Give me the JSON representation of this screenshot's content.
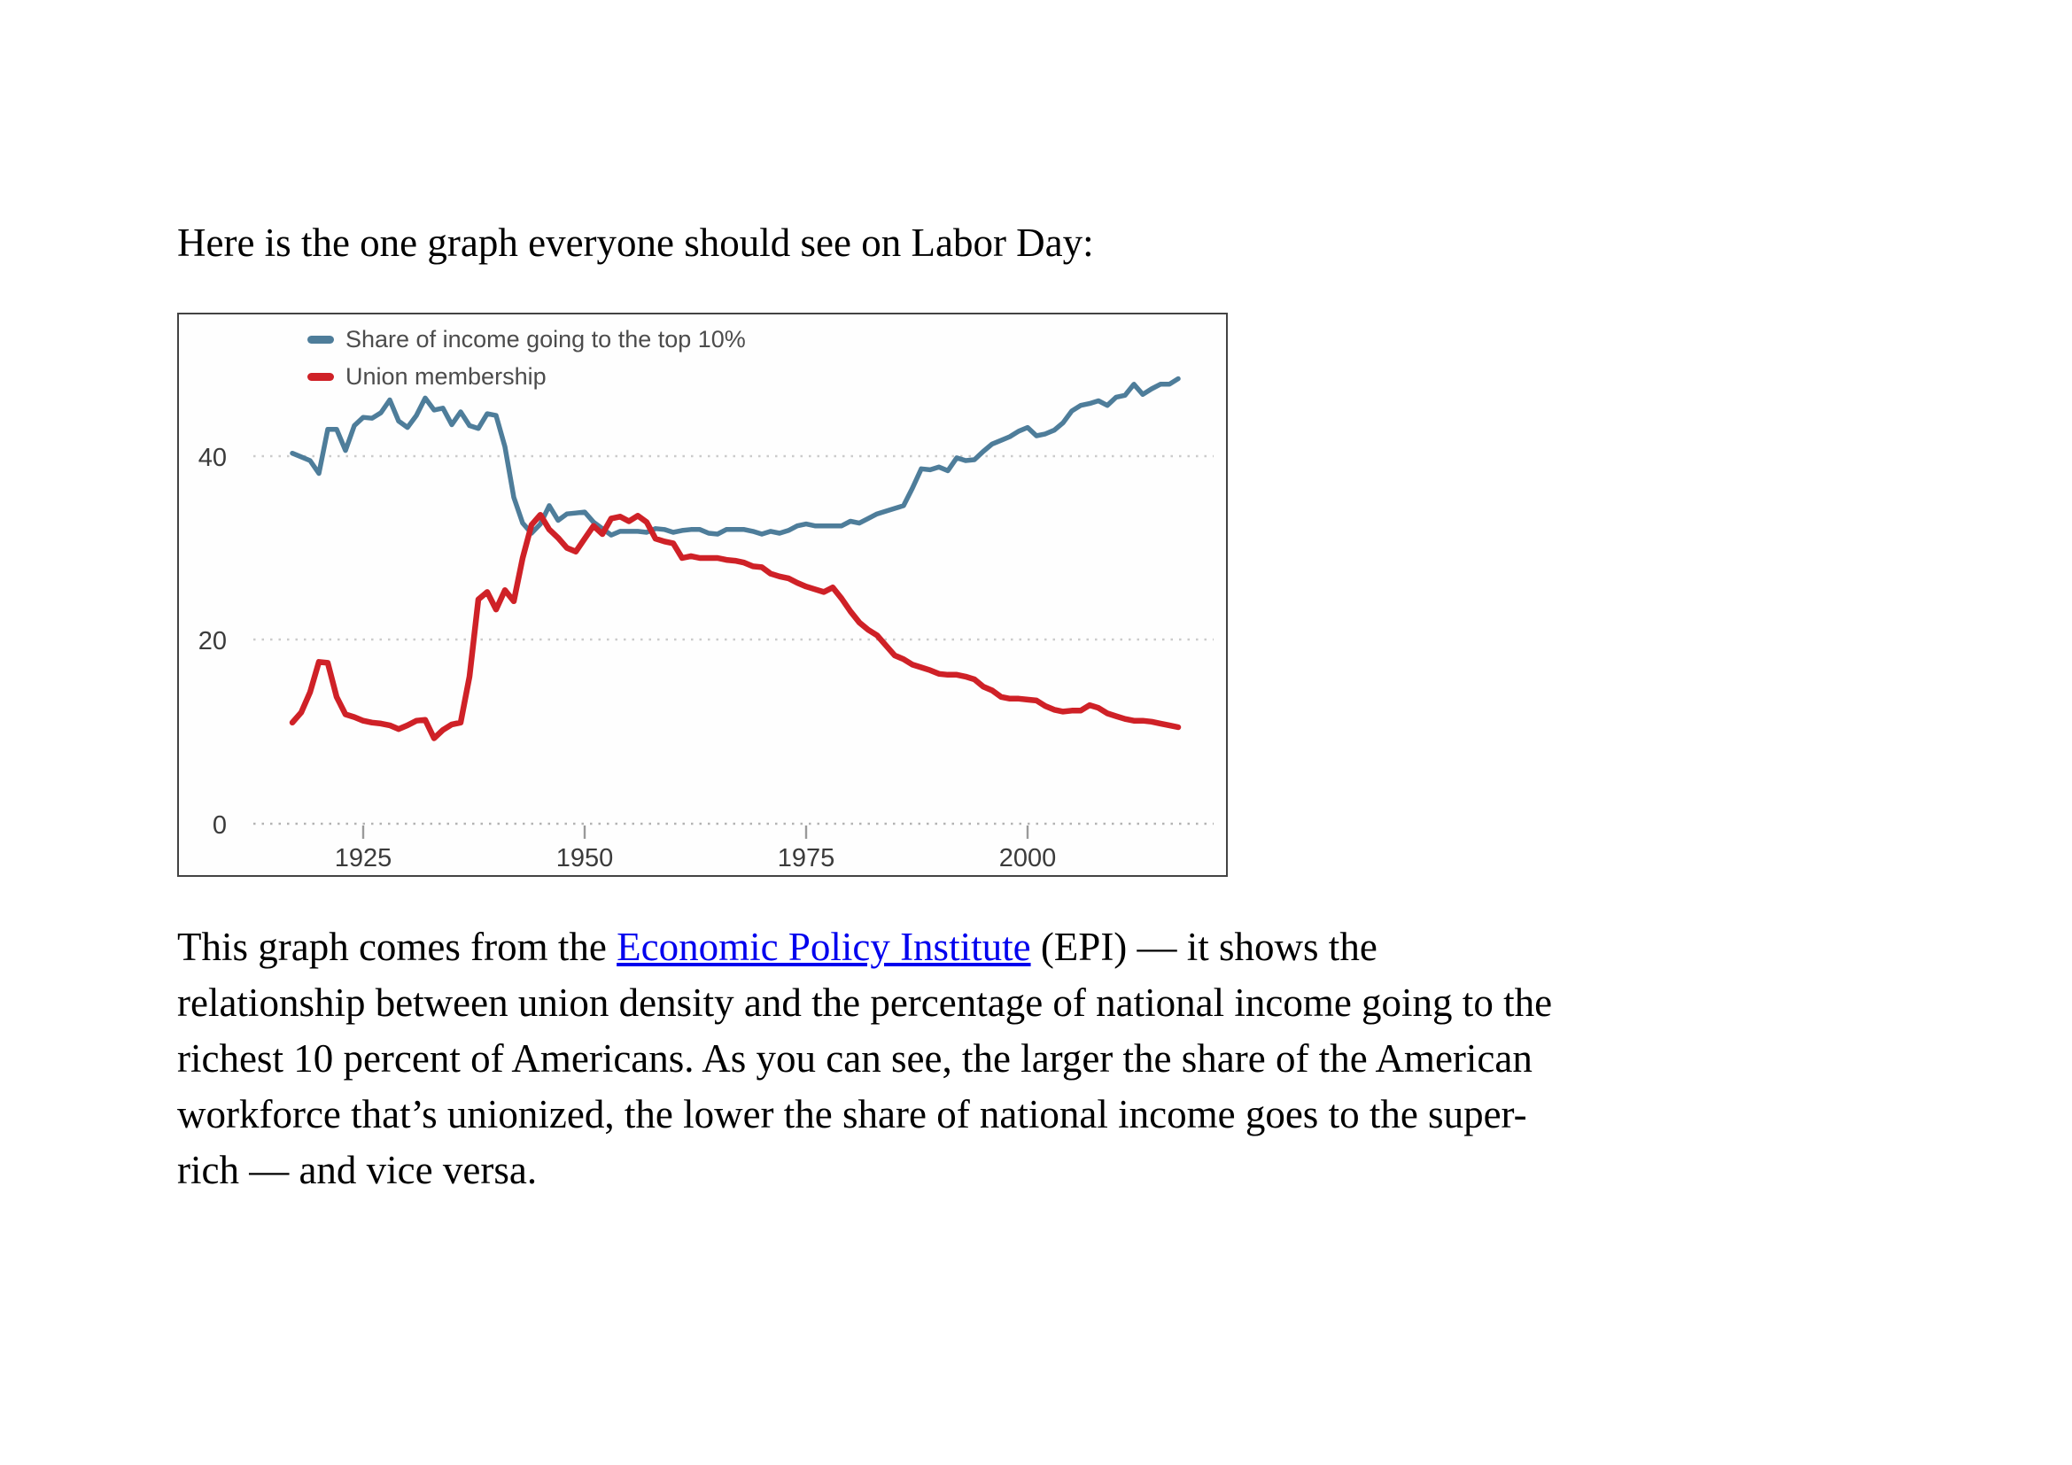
{
  "page": {
    "heading": "Here is the one graph everyone should see on Labor Day:",
    "paragraph": {
      "before_link": "This graph comes from the ",
      "link_text": "Economic Policy Institute",
      "after_link": " (EPI) — it shows the\nrelationship between union density and the percentage of national income going to the\nrichest 10 percent of Americans. As you can see, the larger the share of the American\nworkforce that’s unionized, the lower the share of national income goes to the super-\nrich — and vice versa.",
      "link_color": "#0000ee"
    }
  },
  "chart_data": {
    "type": "line",
    "title": "",
    "xlabel": "",
    "ylabel": "",
    "grid": "horizontal-dotted",
    "legend_position": "top-left",
    "xlim": [
      1904,
      2023
    ],
    "ylim": [
      0,
      55
    ],
    "yticks": [
      40,
      20,
      0
    ],
    "xticks": [
      1925,
      1950,
      1975,
      2000
    ],
    "x": [
      1917,
      1918,
      1919,
      1920,
      1921,
      1922,
      1923,
      1924,
      1925,
      1926,
      1927,
      1928,
      1929,
      1930,
      1931,
      1932,
      1933,
      1934,
      1935,
      1936,
      1937,
      1938,
      1939,
      1940,
      1941,
      1942,
      1943,
      1944,
      1945,
      1946,
      1947,
      1948,
      1949,
      1950,
      1951,
      1952,
      1953,
      1954,
      1955,
      1956,
      1957,
      1958,
      1959,
      1960,
      1961,
      1962,
      1963,
      1964,
      1965,
      1966,
      1967,
      1968,
      1969,
      1970,
      1971,
      1972,
      1973,
      1974,
      1975,
      1976,
      1977,
      1978,
      1979,
      1980,
      1981,
      1982,
      1983,
      1984,
      1985,
      1986,
      1987,
      1988,
      1989,
      1990,
      1991,
      1992,
      1993,
      1994,
      1995,
      1996,
      1997,
      1998,
      1999,
      2000,
      2001,
      2002,
      2003,
      2004,
      2005,
      2006,
      2007,
      2008,
      2009,
      2010,
      2011,
      2012,
      2013,
      2014,
      2015,
      2016,
      2017
    ],
    "series": [
      {
        "name": "Share of income going to the top 10%",
        "color": "#4e7d9a",
        "stroke_width": 5.5,
        "values": [
          40.3,
          39.9,
          39.5,
          38.1,
          42.9,
          42.9,
          40.6,
          43.3,
          44.2,
          44.1,
          44.7,
          46.1,
          43.8,
          43.1,
          44.4,
          46.3,
          45.0,
          45.2,
          43.4,
          44.8,
          43.3,
          43.0,
          44.6,
          44.4,
          41.0,
          35.5,
          32.7,
          31.6,
          32.6,
          34.6,
          33.0,
          33.7,
          33.8,
          33.9,
          32.8,
          32.1,
          31.4,
          31.8,
          31.8,
          31.8,
          31.7,
          32.1,
          32.0,
          31.7,
          31.9,
          32.0,
          32.0,
          31.6,
          31.5,
          32.0,
          32.0,
          32.0,
          31.8,
          31.5,
          31.8,
          31.6,
          31.9,
          32.4,
          32.6,
          32.4,
          32.4,
          32.4,
          32.4,
          32.9,
          32.7,
          33.2,
          33.7,
          34.0,
          34.3,
          34.6,
          36.5,
          38.6,
          38.5,
          38.8,
          38.4,
          39.8,
          39.5,
          39.6,
          40.5,
          41.3,
          41.7,
          42.1,
          42.7,
          43.1,
          42.2,
          42.4,
          42.8,
          43.6,
          44.9,
          45.5,
          45.7,
          46.0,
          45.5,
          46.4,
          46.6,
          47.8,
          46.7,
          47.3,
          47.8,
          47.8,
          48.4
        ]
      },
      {
        "name": "Union membership",
        "color": "#cf2127",
        "stroke_width": 6.5,
        "values": [
          11.0,
          12.1,
          14.3,
          17.6,
          17.5,
          13.8,
          11.9,
          11.6,
          11.2,
          11.0,
          10.9,
          10.7,
          10.3,
          10.7,
          11.2,
          11.3,
          9.3,
          10.2,
          10.8,
          11.0,
          16.0,
          24.4,
          25.2,
          23.3,
          25.4,
          24.2,
          28.9,
          32.5,
          33.6,
          32.0,
          31.1,
          30.0,
          29.6,
          31.0,
          32.4,
          31.5,
          33.2,
          33.4,
          32.9,
          33.5,
          32.8,
          31.0,
          30.7,
          30.5,
          28.9,
          29.1,
          28.9,
          28.9,
          28.9,
          28.7,
          28.6,
          28.4,
          28.0,
          27.9,
          27.2,
          26.9,
          26.7,
          26.2,
          25.8,
          25.5,
          25.2,
          25.7,
          24.5,
          23.1,
          21.9,
          21.1,
          20.5,
          19.4,
          18.3,
          17.9,
          17.3,
          17.0,
          16.7,
          16.3,
          16.2,
          16.2,
          16.0,
          15.7,
          14.9,
          14.5,
          13.8,
          13.6,
          13.6,
          13.5,
          13.4,
          12.8,
          12.4,
          12.2,
          12.3,
          12.3,
          12.9,
          12.6,
          12.0,
          11.7,
          11.4,
          11.2,
          11.2,
          11.1,
          10.9,
          10.7,
          10.5
        ]
      }
    ]
  }
}
